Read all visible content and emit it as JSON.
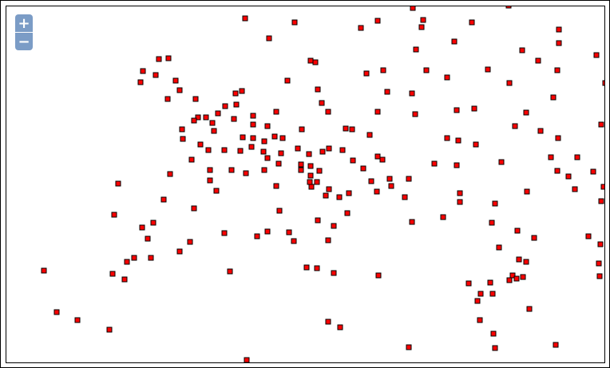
{
  "map": {
    "marker_fill": "#ff0000",
    "marker_stroke": "#000000",
    "background": "#ffffff"
  },
  "zoom": {
    "in_label": "+",
    "out_label": "−",
    "color": "#7b9cc6"
  }
}
